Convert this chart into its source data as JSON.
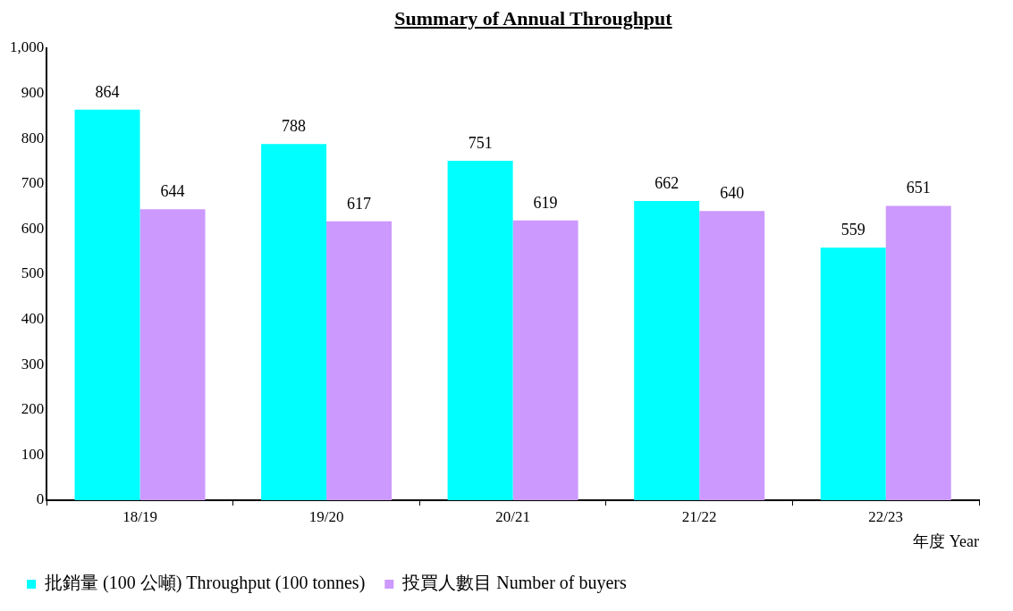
{
  "chart_data": {
    "type": "bar",
    "title": "Summary of Annual Throughput",
    "xlabel": "年度 Year",
    "categories": [
      "18/19",
      "19/20",
      "20/21",
      "21/22",
      "22/23"
    ],
    "series": [
      {
        "name": "批銷量 (100 公噸) Throughput (100 tonnes)",
        "color": "#00ffff",
        "values": [
          864,
          788,
          751,
          662,
          559
        ]
      },
      {
        "name": "投買人數目 Number of buyers",
        "color": "#cc99ff",
        "values": [
          644,
          617,
          619,
          640,
          651
        ]
      }
    ],
    "ylim": [
      0,
      1000
    ],
    "yticks": [
      0,
      100,
      200,
      300,
      400,
      500,
      600,
      700,
      800,
      900,
      {
        "value": 1000,
        "label": "1,000"
      }
    ],
    "grid": false,
    "legend": "bottom",
    "data_labels": true
  }
}
